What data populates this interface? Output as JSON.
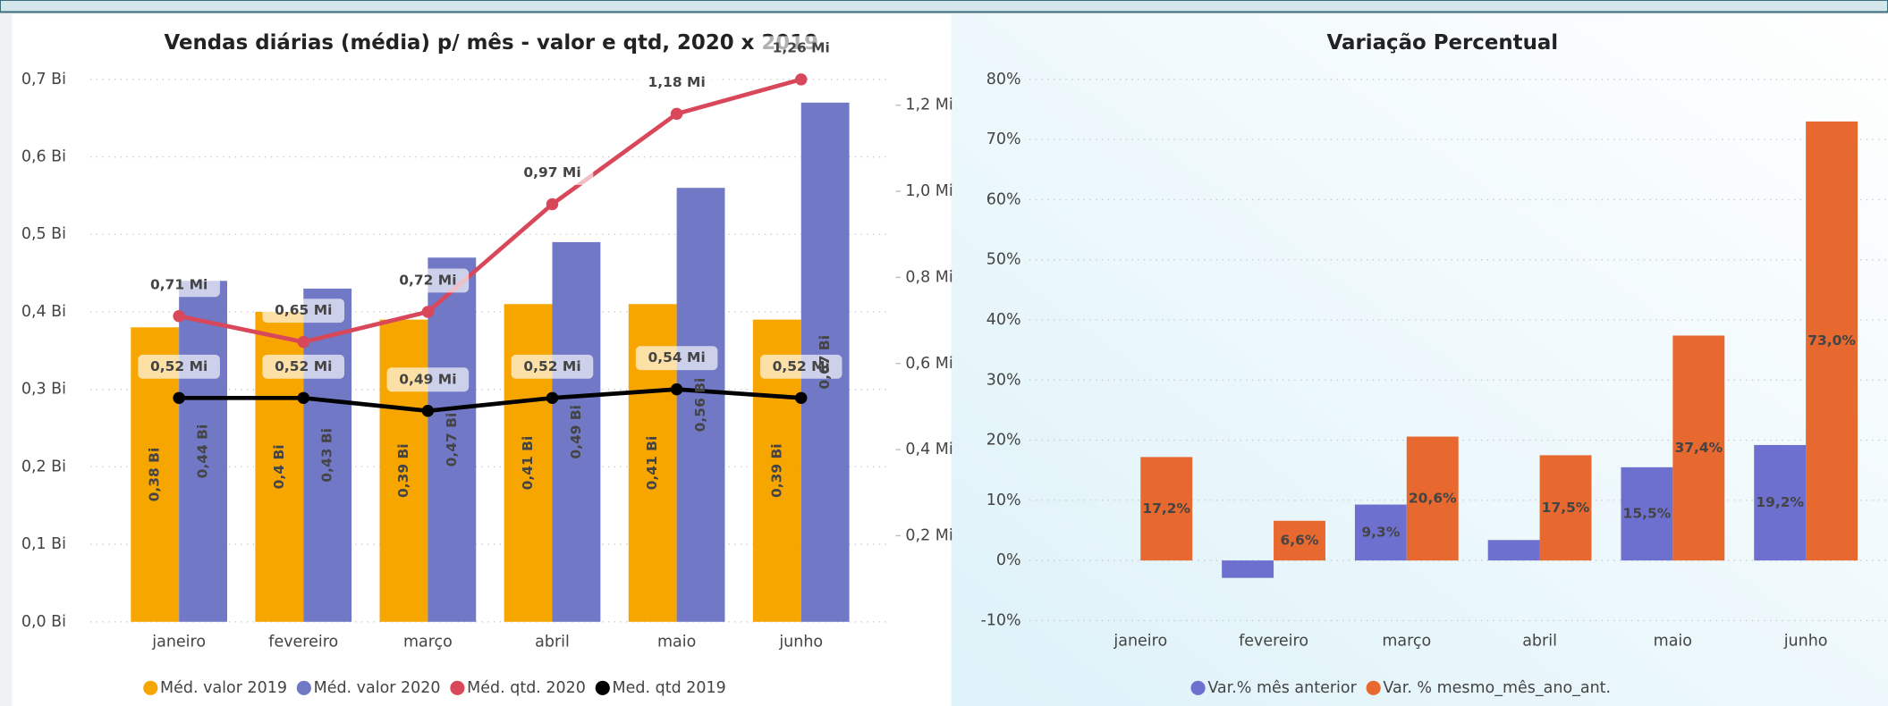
{
  "chart_data": [
    {
      "type": "combo",
      "title": "Vendas diárias (média) p/ mês - valor e qtd, 2020 x 2019",
      "categories": [
        "janeiro",
        "fevereiro",
        "março",
        "abril",
        "maio",
        "junho"
      ],
      "ylim": [
        0,
        0.7
      ],
      "yticks": [
        {
          "value": 0,
          "label": "0,0 Bi"
        },
        {
          "value": 0.1,
          "label": "0,1 Bi"
        },
        {
          "value": 0.2,
          "label": "0,2 Bi"
        },
        {
          "value": 0.3,
          "label": "0,3 Bi"
        },
        {
          "value": 0.4,
          "label": "0,4 Bi"
        },
        {
          "value": 0.5,
          "label": "0,5 Bi"
        },
        {
          "value": 0.6,
          "label": "0,6 Bi"
        },
        {
          "value": 0.7,
          "label": "0,7 Bi"
        }
      ],
      "y2lim": [
        0,
        1.26
      ],
      "y2ticks": [
        {
          "value": 0.2,
          "label": "0,2 Mi"
        },
        {
          "value": 0.4,
          "label": "0,4 Mi"
        },
        {
          "value": 0.6,
          "label": "0,6 Mi"
        },
        {
          "value": 0.8,
          "label": "0,8 Mi"
        },
        {
          "value": 1.0,
          "label": "1,0 Mi"
        },
        {
          "value": 1.2,
          "label": "1,2 Mi"
        }
      ],
      "grid": true,
      "legend": "bottom",
      "series": [
        {
          "name": "Méd. valor 2019",
          "type": "bar",
          "color": "#f7a600",
          "values": [
            0.38,
            0.4,
            0.39,
            0.41,
            0.41,
            0.39
          ],
          "value_labels": [
            "0,38 Bi",
            "0,4 Bi",
            "0,39 Bi",
            "0,41 Bi",
            "0,41 Bi",
            "0,39 Bi"
          ]
        },
        {
          "name": "Méd. valor 2020",
          "type": "bar",
          "color": "#7178c6",
          "values": [
            0.44,
            0.43,
            0.47,
            0.49,
            0.56,
            0.67
          ],
          "value_labels": [
            "0,44 Bi",
            "0,43 Bi",
            "0,47 Bi",
            "0,49 Bi",
            "0,56 Bi",
            "0,67 Bi"
          ]
        },
        {
          "name": "Méd. qtd. 2020",
          "type": "line",
          "axis": "y2",
          "color": "#d9475a",
          "values": [
            0.71,
            0.65,
            0.72,
            0.97,
            1.18,
            1.26
          ],
          "value_labels": [
            "0,71 Mi",
            "0,65 Mi",
            "0,72 Mi",
            "0,97 Mi",
            "1,18 Mi",
            "1,26 Mi"
          ]
        },
        {
          "name": "Med. qtd 2019",
          "type": "line",
          "axis": "y2",
          "color": "#000000",
          "values": [
            0.52,
            0.52,
            0.49,
            0.52,
            0.54,
            0.52
          ],
          "value_labels": [
            "0,52 Mi",
            "0,52 Mi",
            "0,49 Mi",
            "0,52 Mi",
            "0,54 Mi",
            "0,52 Mi"
          ]
        }
      ]
    },
    {
      "type": "bar",
      "title": "Variação Percentual",
      "categories": [
        "janeiro",
        "fevereiro",
        "março",
        "abril",
        "maio",
        "junho"
      ],
      "ylim": [
        -10,
        80
      ],
      "yticks": [
        {
          "value": -10,
          "label": "-10%"
        },
        {
          "value": 0,
          "label": "0%"
        },
        {
          "value": 10,
          "label": "10%"
        },
        {
          "value": 20,
          "label": "20%"
        },
        {
          "value": 30,
          "label": "30%"
        },
        {
          "value": 40,
          "label": "40%"
        },
        {
          "value": 50,
          "label": "50%"
        },
        {
          "value": 60,
          "label": "60%"
        },
        {
          "value": 70,
          "label": "70%"
        },
        {
          "value": 80,
          "label": "80%"
        }
      ],
      "grid": true,
      "legend": "bottom",
      "series": [
        {
          "name": "Var.% mês anterior",
          "color": "#6e70d0",
          "values": [
            null,
            -2.9,
            9.3,
            3.4,
            15.5,
            19.2
          ],
          "value_labels": [
            null,
            null,
            "9,3%",
            null,
            "15,5%",
            "19,2%"
          ]
        },
        {
          "name": "Var. % mesmo_mês_ano_ant.",
          "color": "#e8692f",
          "values": [
            17.2,
            6.6,
            20.6,
            17.5,
            37.4,
            73.0
          ],
          "value_labels": [
            "17,2%",
            "6,6%",
            "20,6%",
            "17,5%",
            "37,4%",
            "73,0%"
          ]
        }
      ]
    }
  ]
}
